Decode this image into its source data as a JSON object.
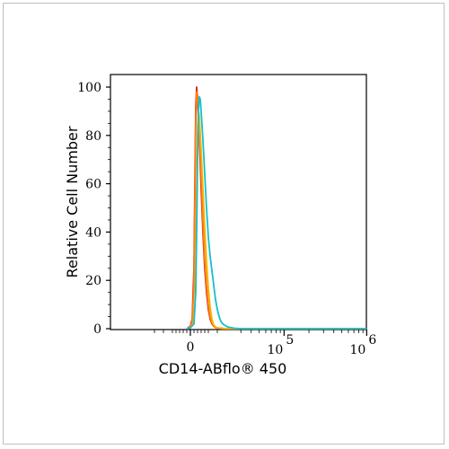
{
  "chart_data": {
    "type": "line",
    "xlabel": "CD14-ABflo® 450",
    "ylabel": "Relative Cell Number",
    "ylim": [
      0,
      100
    ],
    "yticks": [
      "0",
      "20",
      "40",
      "60",
      "80",
      "100"
    ],
    "x_scale": "biexponential",
    "xticks": [
      {
        "label": "0",
        "base": "",
        "exp": "",
        "value": 0
      },
      {
        "label": "",
        "base": "10",
        "exp": "5",
        "value": 100000
      },
      {
        "label": "",
        "base": "10",
        "exp": "6",
        "value": 1000000
      }
    ],
    "grid": false,
    "series": [
      {
        "color": "#d62728",
        "x": [
          -2000,
          0,
          1000,
          2000,
          2500,
          3000,
          3500,
          4000,
          5000,
          6000,
          7000,
          8000,
          9000,
          10000,
          11000,
          12000,
          13000,
          14000,
          15000,
          17000,
          20000,
          30000,
          100000,
          1000000
        ],
        "y": [
          0,
          1,
          4,
          25,
          60,
          92,
          100,
          95,
          80,
          58,
          40,
          25,
          15,
          8,
          4,
          2,
          1,
          0.5,
          0.3,
          0.2,
          0,
          0,
          0,
          0
        ]
      },
      {
        "color": "#ff7f0e",
        "x": [
          -2000,
          0,
          1000,
          2000,
          2500,
          3000,
          3500,
          4000,
          5000,
          6000,
          7000,
          8000,
          9000,
          10000,
          11000,
          12000,
          13000,
          14000,
          15000,
          16000,
          17000,
          20000,
          30000,
          100000,
          1000000
        ],
        "y": [
          0,
          0.5,
          3,
          18,
          50,
          85,
          98,
          97,
          85,
          65,
          45,
          29,
          18,
          10,
          5,
          2.5,
          1.2,
          0.6,
          0.3,
          0.2,
          0.1,
          0,
          0,
          0,
          0
        ]
      },
      {
        "color": "#f2b705",
        "x": [
          -2000,
          0,
          1500,
          2500,
          3000,
          3500,
          4000,
          4500,
          5000,
          6000,
          7000,
          8000,
          9000,
          10000,
          11000,
          12000,
          13000,
          14000,
          15000,
          17000,
          20000,
          30000,
          100000,
          1000000
        ],
        "y": [
          0,
          0.5,
          2,
          10,
          30,
          60,
          82,
          90,
          88,
          74,
          58,
          42,
          28,
          17,
          9,
          4,
          1.5,
          0.8,
          0.3,
          0.1,
          0,
          0,
          0,
          0
        ]
      },
      {
        "color": "#17becf",
        "x": [
          -2000,
          0,
          2000,
          3000,
          3500,
          4000,
          4500,
          5000,
          5500,
          6000,
          7000,
          8000,
          9000,
          10000,
          11000,
          12000,
          13000,
          14000,
          15000,
          16000,
          17000,
          18000,
          20000,
          22000,
          25000,
          30000,
          40000,
          100000,
          1000000
        ],
        "y": [
          0,
          0.3,
          2,
          15,
          40,
          70,
          90,
          96,
          95,
          90,
          78,
          64,
          50,
          38,
          30,
          24,
          18,
          12,
          8,
          5,
          3,
          2,
          1,
          0.5,
          0.2,
          0,
          0,
          0,
          0
        ]
      }
    ]
  }
}
